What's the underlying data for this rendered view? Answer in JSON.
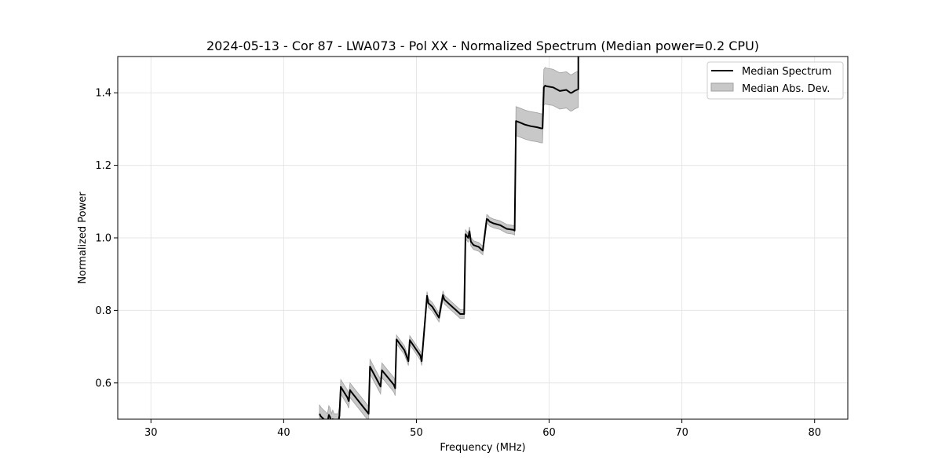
{
  "chart_data": {
    "type": "line",
    "title": "2024-05-13 - Cor 87 - LWA073 - Pol XX - Normalized Spectrum (Median power=0.2 CPU)",
    "xlabel": "Frequency (MHz)",
    "ylabel": "Normalized Power",
    "xlim": [
      27.5,
      82.5
    ],
    "ylim": [
      0.5,
      1.5
    ],
    "xticks": [
      30,
      40,
      50,
      60,
      70,
      80
    ],
    "yticks": [
      0.6,
      0.8,
      1.0,
      1.2,
      1.4
    ],
    "xtick_labels": [
      "30",
      "40",
      "50",
      "60",
      "70",
      "80"
    ],
    "ytick_labels": [
      "0.6",
      "0.8",
      "1.0",
      "1.2",
      "1.4"
    ],
    "grid": true,
    "legend_position": "top-right",
    "colors": {
      "line": "#000000",
      "band": "#c8c8c8",
      "band_edge": "#a0a0a0",
      "grid": "#e6e6e6"
    },
    "legend": [
      {
        "label": "Median Spectrum",
        "kind": "line"
      },
      {
        "label": "Median Abs. Dev.",
        "kind": "band"
      }
    ],
    "series": [
      {
        "name": "Median Spectrum",
        "x": [
          42.7,
          42.8,
          43.3,
          43.4,
          43.5,
          43.6,
          43.7,
          43.8,
          44.1,
          44.2,
          44.3,
          44.8,
          44.9,
          45.0,
          45.1,
          46.4,
          46.5,
          47.3,
          47.4,
          48.3,
          48.4,
          48.5,
          49.1,
          49.4,
          49.5,
          50.3,
          50.4,
          50.8,
          50.9,
          51.2,
          51.7,
          52.0,
          52.1,
          52.4,
          53.0,
          53.3,
          53.6,
          53.7,
          53.9,
          54.0,
          54.1,
          54.3,
          54.7,
          55.0,
          55.3,
          55.4,
          55.5,
          55.8,
          56.3,
          56.8,
          57.3,
          57.4,
          57.5,
          57.8,
          58.2,
          58.6,
          59.1,
          59.4,
          59.5,
          59.6,
          59.7,
          59.8,
          60.3,
          60.8,
          61.3,
          61.6,
          61.7,
          61.9,
          62.2,
          62.2
        ],
        "values": [
          0.515,
          0.508,
          0.49,
          0.512,
          0.506,
          0.49,
          0.5,
          0.49,
          0.49,
          0.51,
          0.589,
          0.56,
          0.55,
          0.58,
          0.575,
          0.515,
          0.645,
          0.59,
          0.635,
          0.595,
          0.585,
          0.72,
          0.69,
          0.66,
          0.718,
          0.675,
          0.66,
          0.84,
          0.82,
          0.81,
          0.78,
          0.842,
          0.83,
          0.82,
          0.8,
          0.79,
          0.79,
          1.01,
          1.0,
          1.018,
          0.99,
          0.98,
          0.975,
          0.965,
          1.052,
          1.05,
          1.045,
          1.04,
          1.035,
          1.025,
          1.022,
          1.02,
          1.322,
          1.318,
          1.312,
          1.308,
          1.305,
          1.302,
          1.302,
          1.415,
          1.42,
          1.418,
          1.415,
          1.405,
          1.408,
          1.4,
          1.4,
          1.405,
          1.41,
          1.51
        ],
        "mad": [
          0.025,
          0.025,
          0.025,
          0.025,
          0.025,
          0.025,
          0.025,
          0.025,
          0.025,
          0.025,
          0.02,
          0.02,
          0.02,
          0.02,
          0.02,
          0.02,
          0.02,
          0.02,
          0.02,
          0.02,
          0.02,
          0.012,
          0.012,
          0.012,
          0.012,
          0.012,
          0.012,
          0.012,
          0.012,
          0.012,
          0.012,
          0.012,
          0.012,
          0.012,
          0.012,
          0.012,
          0.012,
          0.012,
          0.012,
          0.012,
          0.012,
          0.012,
          0.012,
          0.012,
          0.012,
          0.012,
          0.012,
          0.012,
          0.012,
          0.012,
          0.012,
          0.012,
          0.04,
          0.04,
          0.04,
          0.04,
          0.04,
          0.04,
          0.04,
          0.05,
          0.05,
          0.05,
          0.05,
          0.05,
          0.05,
          0.05,
          0.05,
          0.05,
          0.05,
          0.05
        ]
      }
    ]
  }
}
